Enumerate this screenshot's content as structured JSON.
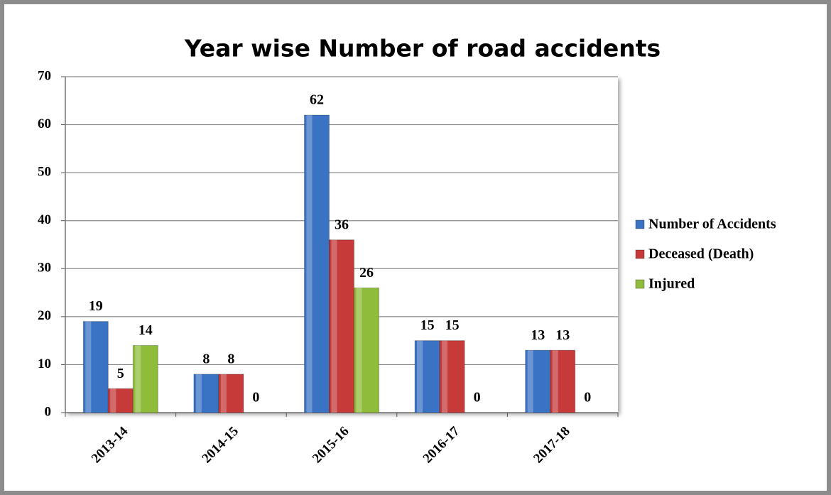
{
  "chart_data": {
    "type": "bar",
    "title": "Year wise Number of road accidents",
    "categories": [
      "2013-14",
      "2014-15",
      "2015-16",
      "2016-17",
      "2017-18"
    ],
    "series": [
      {
        "name": "Number of Accidents",
        "color": "#3b73c4",
        "values": [
          19,
          8,
          62,
          15,
          13
        ]
      },
      {
        "name": "Deceased (Death)",
        "color": "#c63a3a",
        "values": [
          5,
          8,
          36,
          15,
          13
        ]
      },
      {
        "name": "Injured",
        "color": "#8fbc3a",
        "values": [
          14,
          0,
          26,
          0,
          0
        ]
      }
    ],
    "ylim": [
      0,
      70
    ],
    "yticks": [
      0,
      10,
      20,
      30,
      40,
      50,
      60,
      70
    ],
    "grid": true,
    "legend": "right"
  }
}
